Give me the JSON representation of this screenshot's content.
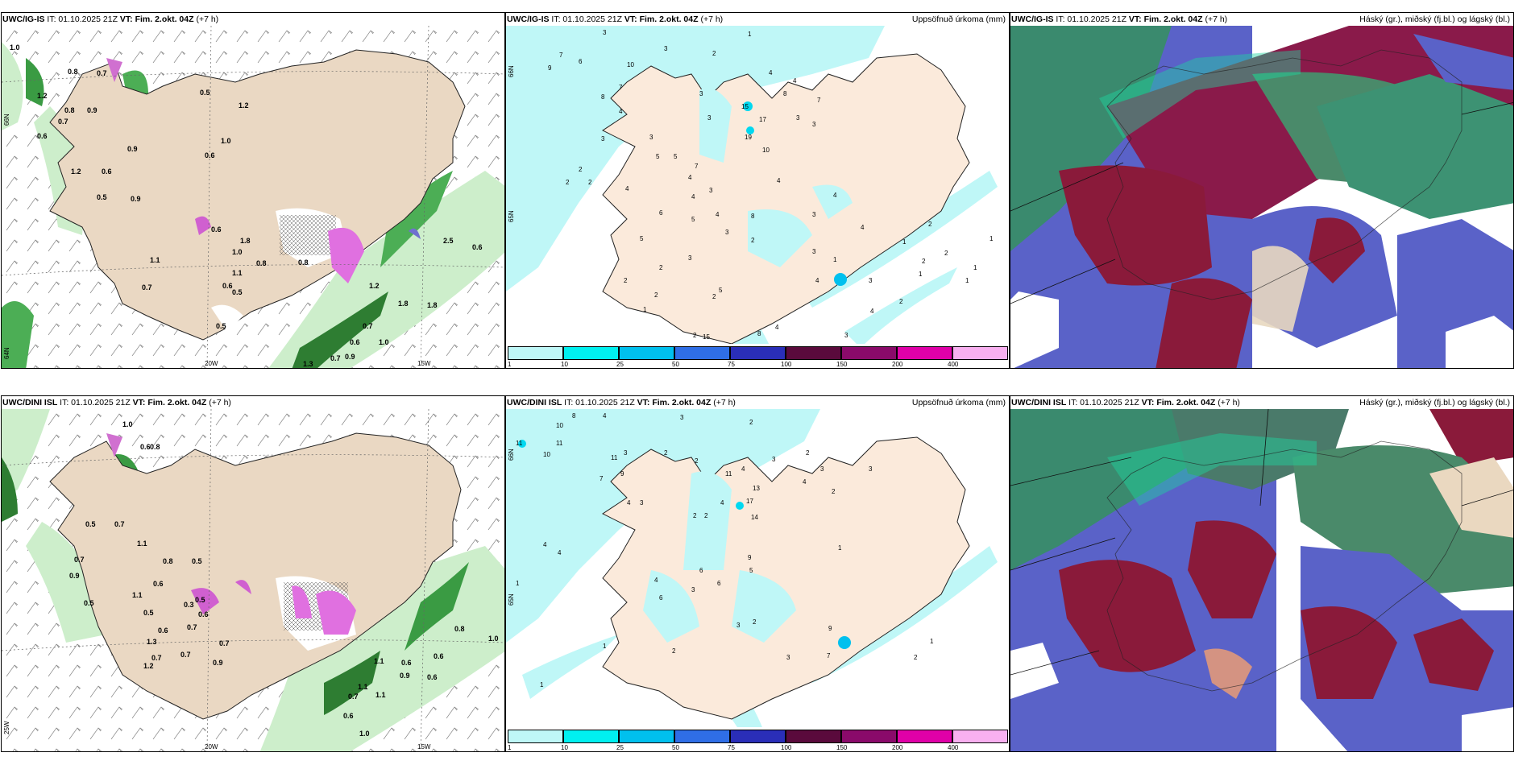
{
  "panels_top": {
    "wind": {
      "model": "UWC/IG-IS",
      "it": "IT: 01.10.2025 21Z",
      "vt": "VT: Fim. 2.okt. 04Z",
      "lead": "(+7 h)",
      "right": ""
    },
    "precip": {
      "model": "UWC/IG-IS",
      "it": "IT: 01.10.2025 21Z",
      "vt": "VT: Fim. 2.okt. 04Z",
      "lead": "(+7 h)",
      "right": "Uppsöfnuð úrkoma (mm)"
    },
    "cloud": {
      "model": "UWC/IG-IS",
      "it": "IT: 01.10.2025 21Z",
      "vt": "VT: Fim. 2.okt. 04Z",
      "lead": "(+7 h)",
      "right": "Háský (gr.), miðský (fj.bl.) og lágský (bl.)"
    }
  },
  "panels_bottom": {
    "wind": {
      "model": "UWC/DINI ISL",
      "it": "IT: 01.10.2025 21Z",
      "vt": "VT: Fim. 2.okt. 04Z",
      "lead": "(+7 h)",
      "right": ""
    },
    "precip": {
      "model": "UWC/DINI ISL",
      "it": "IT: 01.10.2025 21Z",
      "vt": "VT: Fim. 2.okt. 04Z",
      "lead": "(+7 h)",
      "right": "Uppsöfnuð úrkoma (mm)"
    },
    "cloud": {
      "model": "UWC/DINI ISL",
      "it": "IT: 01.10.2025 21Z",
      "vt": "VT: Fim. 2.okt. 04Z",
      "lead": "(+7 h)",
      "right": "Háský (gr.), miðský (fj.bl.) og lágský (bl.)"
    }
  },
  "axes": {
    "lon_20": "20W",
    "lon_15": "15W",
    "lat_66": "66N",
    "lat_64": "64N",
    "lat_65": "65N",
    "lon_25": "25W"
  },
  "colorbar": {
    "ticks": [
      "1",
      "10",
      "25",
      "50",
      "75",
      "100",
      "150",
      "200",
      "400"
    ],
    "colors": [
      "#bff7f7",
      "#00f0f0",
      "#00c0ee",
      "#2f6ee6",
      "#2a2eb8",
      "#5a0a3c",
      "#8a0a6a",
      "#e000a8",
      "#f8b0f0"
    ]
  },
  "top_wind_values": [
    "1.0",
    "0.8",
    "0.7",
    "1.2",
    "0.8",
    "0.9",
    "0.7",
    "0.6",
    "0.5",
    "1.2",
    "1.0",
    "0.6",
    "0.9",
    "0.6",
    "0.5",
    "1.2",
    "0.9",
    "0.6",
    "1.8",
    "1.0",
    "0.8",
    "1.1",
    "0.5",
    "0.7",
    "1.1",
    "0.6",
    "0.5",
    "0.8",
    "1.2",
    "1.8",
    "0.7",
    "0.6",
    "1.3",
    "0.7",
    "0.9",
    "1.8",
    "2.5",
    "1.0",
    "0.6"
  ],
  "top_precip_values": [
    "3",
    "1",
    "3",
    "2",
    "7",
    "6",
    "7",
    "3",
    "8",
    "9",
    "8",
    "10",
    "4",
    "3",
    "3",
    "15",
    "17",
    "19",
    "10",
    "3",
    "2",
    "5",
    "5",
    "7",
    "4",
    "8",
    "3",
    "3",
    "7",
    "4",
    "4",
    "5",
    "3",
    "2",
    "2",
    "5",
    "4",
    "3",
    "1",
    "3",
    "2",
    "4",
    "4",
    "8",
    "1",
    "2",
    "1",
    "1",
    "4",
    "4",
    "3",
    "6",
    "5",
    "2",
    "3",
    "4",
    "4",
    "2",
    "1",
    "2",
    "4",
    "3",
    "2",
    "2",
    "2",
    "15",
    "2",
    "4",
    "5",
    "3",
    "2",
    "1",
    "1"
  ],
  "bottom_wind_values": [
    "1.0",
    "0.6",
    "0.8",
    "0.5",
    "0.7",
    "1.1",
    "0.7",
    "0.8",
    "0.5",
    "0.6",
    "0.9",
    "1.1",
    "0.5",
    "1.3",
    "0.7",
    "1.2",
    "0.6",
    "0.7",
    "0.5",
    "0.6",
    "0.7",
    "0.5",
    "0.3",
    "0.7",
    "1.1",
    "0.6",
    "0.9",
    "0.6",
    "1.0",
    "0.8",
    "1.1",
    "0.9",
    "0.6",
    "1.1",
    "0.7",
    "0.6",
    "1.0"
  ],
  "bottom_precip_values": [
    "10",
    "8",
    "4",
    "3",
    "2",
    "11",
    "11",
    "10",
    "3",
    "11",
    "9",
    "2",
    "7",
    "2",
    "4",
    "3",
    "2",
    "11",
    "13",
    "17",
    "14",
    "4",
    "3",
    "2",
    "1",
    "3",
    "4",
    "2",
    "2",
    "4",
    "3",
    "4",
    "4",
    "6",
    "3",
    "9",
    "5",
    "4",
    "6",
    "6",
    "9",
    "7",
    "3",
    "2",
    "3",
    "2",
    "1",
    "1",
    "2",
    "1",
    "1"
  ]
}
